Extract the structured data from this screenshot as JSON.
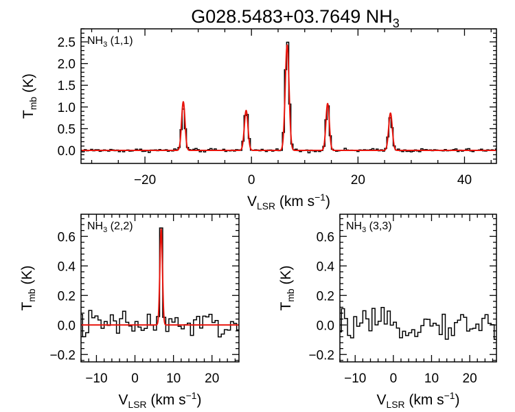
{
  "figure": {
    "title": "G028.5483+03.7649 NH",
    "title_sub": "3"
  },
  "chart_data": [
    {
      "type": "line",
      "panel": "NH3 (1,1)",
      "label": {
        "main": "NH",
        "sub": "3",
        "rest": " (1,1)"
      },
      "xlabel": {
        "main": "V",
        "sub": "LSR",
        "rest": " (km s",
        "sup": "−1",
        "end": ")"
      },
      "ylabel": {
        "main": "T",
        "sub": "mb",
        "rest": " (K)"
      },
      "xlim": [
        -32,
        46
      ],
      "ylim": [
        -0.3,
        2.8
      ],
      "xticks": [
        -20,
        0,
        20,
        40
      ],
      "yticks": [
        0.0,
        0.5,
        1.0,
        1.5,
        2.0,
        2.5
      ],
      "channel_width": 0.4,
      "noise_rms": 0.02,
      "series": [
        {
          "name": "observed",
          "style": "step",
          "color": "#000000",
          "lines": [
            {
              "center": -12.8,
              "peak": 0.97,
              "sigma": 0.34
            },
            {
              "center": -1.0,
              "peak": 0.98,
              "sigma": 0.36
            },
            {
              "center": 6.7,
              "peak": 2.55,
              "sigma": 0.38
            },
            {
              "center": 14.3,
              "peak": 1.02,
              "sigma": 0.34
            },
            {
              "center": 26.1,
              "peak": 0.8,
              "sigma": 0.36
            }
          ]
        },
        {
          "name": "fit",
          "style": "line",
          "color": "#e8140c",
          "lines": [
            {
              "center": -12.8,
              "peak": 1.12,
              "sigma": 0.32
            },
            {
              "center": -1.0,
              "peak": 0.92,
              "sigma": 0.34
            },
            {
              "center": 6.7,
              "peak": 2.43,
              "sigma": 0.36
            },
            {
              "center": 14.3,
              "peak": 1.08,
              "sigma": 0.32
            },
            {
              "center": 26.1,
              "peak": 0.86,
              "sigma": 0.34
            }
          ]
        }
      ]
    },
    {
      "type": "line",
      "panel": "NH3 (2,2)",
      "label": {
        "main": "NH",
        "sub": "3",
        "rest": " (2,2)"
      },
      "xlabel": {
        "main": "V",
        "sub": "LSR",
        "rest": " (km s",
        "sup": "−1",
        "end": ")"
      },
      "ylabel": {
        "main": "T",
        "sub": "mb",
        "rest": " (K)"
      },
      "xlim": [
        -14,
        27
      ],
      "ylim": [
        -0.25,
        0.75
      ],
      "xticks": [
        -10,
        0,
        10,
        20
      ],
      "yticks": [
        -0.2,
        0.0,
        0.2,
        0.4,
        0.6
      ],
      "channel_width": 0.8,
      "noise_rms": 0.05,
      "series": [
        {
          "name": "observed",
          "style": "step",
          "color": "#000000",
          "lines": [
            {
              "center": 6.8,
              "peak": 0.6,
              "sigma": 0.35
            }
          ]
        },
        {
          "name": "fit",
          "style": "line",
          "color": "#e8140c",
          "lines": [
            {
              "center": 6.8,
              "peak": 0.65,
              "sigma": 0.33
            }
          ]
        }
      ]
    },
    {
      "type": "line",
      "panel": "NH3 (3,3)",
      "label": {
        "main": "NH",
        "sub": "3",
        "rest": " (3,3)"
      },
      "xlabel": {
        "main": "V",
        "sub": "LSR",
        "rest": " (km s",
        "sup": "−1",
        "end": ")"
      },
      "ylabel": {
        "main": "T",
        "sub": "mb",
        "rest": " (K)"
      },
      "xlim": [
        -14,
        27
      ],
      "ylim": [
        -0.25,
        0.75
      ],
      "xticks": [
        -10,
        0,
        10,
        20
      ],
      "yticks": [
        -0.2,
        0.0,
        0.2,
        0.4,
        0.6
      ],
      "channel_width": 0.8,
      "noise_rms": 0.045,
      "series": [
        {
          "name": "observed",
          "style": "step",
          "color": "#000000",
          "lines": []
        }
      ]
    }
  ]
}
